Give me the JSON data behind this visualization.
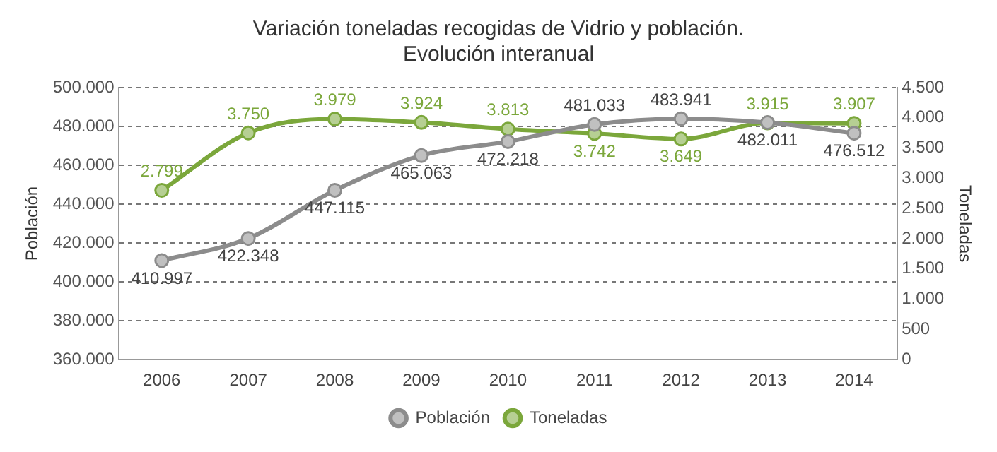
{
  "chart_data": {
    "type": "line",
    "title": "Variación toneladas recogidas de Vidrio y población.\nEvolución interanual",
    "ylabel": "Población",
    "y2label": "Toneladas",
    "categories": [
      "2006",
      "2007",
      "2008",
      "2009",
      "2010",
      "2011",
      "2012",
      "2013",
      "2014"
    ],
    "series": [
      {
        "name": "Población",
        "color": "#8c8c8c",
        "values": [
          410997,
          422348,
          447115,
          465063,
          472218,
          481033,
          483941,
          482011,
          476512
        ],
        "value_labels": [
          "410.997",
          "422.348",
          "447.115",
          "465.063",
          "472.218",
          "481.033",
          "483.941",
          "482.011",
          "476.512"
        ]
      },
      {
        "name": "Toneladas",
        "color": "#7ba73b",
        "axis": "y2",
        "values": [
          2799,
          3750,
          3979,
          3924,
          3813,
          3742,
          3649,
          3915,
          3907
        ],
        "value_labels": [
          "2.799",
          "3.750",
          "3.979",
          "3.924",
          "3.813",
          "3.742",
          "3.649",
          "3.915",
          "3.907"
        ]
      }
    ],
    "ylim": [
      360000,
      500000
    ],
    "yticks": [
      {
        "value": 360000,
        "label": "360.000"
      },
      {
        "value": 380000,
        "label": "380.000"
      },
      {
        "value": 400000,
        "label": "400.000"
      },
      {
        "value": 420000,
        "label": "420.000"
      },
      {
        "value": 440000,
        "label": "440.000"
      },
      {
        "value": 460000,
        "label": "460.000"
      },
      {
        "value": 480000,
        "label": "480.000"
      },
      {
        "value": 500000,
        "label": "500.000"
      }
    ],
    "y2lim": [
      0,
      4500
    ],
    "y2ticks": [
      0,
      500,
      {
        "value": 1000,
        "label": "1.000"
      },
      {
        "value": 1500,
        "label": "1.500"
      },
      {
        "value": 2000,
        "label": "2.000"
      },
      {
        "value": 2500,
        "label": "2.500"
      },
      {
        "value": 3000,
        "label": "3.000"
      },
      {
        "value": 3500,
        "label": "3.500"
      },
      {
        "value": 4000,
        "label": "4.000"
      },
      {
        "value": 4500,
        "label": "4.500"
      }
    ],
    "grid": "y",
    "legend": "bottom",
    "marker": "circle",
    "line_style": "solid"
  }
}
